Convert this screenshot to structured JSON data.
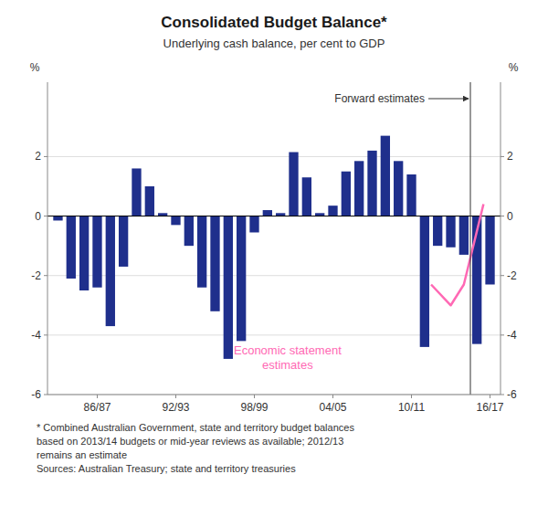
{
  "chart_data": {
    "type": "bar",
    "title": "Consolidated Budget Balance*",
    "subtitle": "Underlying cash balance, per cent to GDP",
    "ylabel": "%",
    "y2label": "%",
    "categories": [
      null,
      null,
      null,
      "86/87",
      null,
      null,
      null,
      null,
      null,
      "92/93",
      null,
      null,
      null,
      null,
      null,
      "98/99",
      null,
      null,
      null,
      null,
      null,
      "04/05",
      null,
      null,
      null,
      null,
      null,
      "10/11",
      null,
      null,
      null,
      null,
      null,
      "16/17"
    ],
    "xlim": [
      -0.8,
      33.8
    ],
    "ylim": [
      -6,
      4.5
    ],
    "yticks": [
      -6,
      -4,
      -2,
      0,
      2
    ],
    "y2lim": [
      -6,
      4.5
    ],
    "y2ticks": [
      -6,
      -4,
      -2,
      0,
      2
    ],
    "grid": true,
    "series": [
      {
        "type": "bar",
        "color": "#1f2f8c",
        "values": [
          -0.15,
          -2.1,
          -2.5,
          -2.4,
          -3.7,
          -1.7,
          1.6,
          1.0,
          0.1,
          -0.3,
          -1.0,
          -2.4,
          -3.2,
          -4.8,
          -4.2,
          -0.55,
          0.2,
          0.1,
          2.15,
          1.3,
          0.1,
          0.35,
          1.5,
          1.85,
          2.2,
          2.7,
          1.85,
          1.4,
          -4.4,
          -1.0,
          -1.05,
          -1.3,
          -4.3,
          -2.3
        ]
      },
      {
        "type": "line",
        "color": "#ff69b4",
        "x": [
          28.5,
          30.0,
          31.0,
          32.5
        ],
        "values": [
          -2.3,
          -3.0,
          -2.3,
          0.4
        ]
      }
    ],
    "vlines": [
      {
        "x": 31.5,
        "label": "Forward estimates"
      }
    ],
    "annotations": [
      {
        "text": "Economic statement\nestimates"
      }
    ],
    "footnote": "* Combined Australian Government, state and territory budget balances\nbased on 2013/14 budgets or mid-year reviews as available; 2012/13\nremains an estimate\nSources: Australian Treasury; state and territory treasuries"
  }
}
